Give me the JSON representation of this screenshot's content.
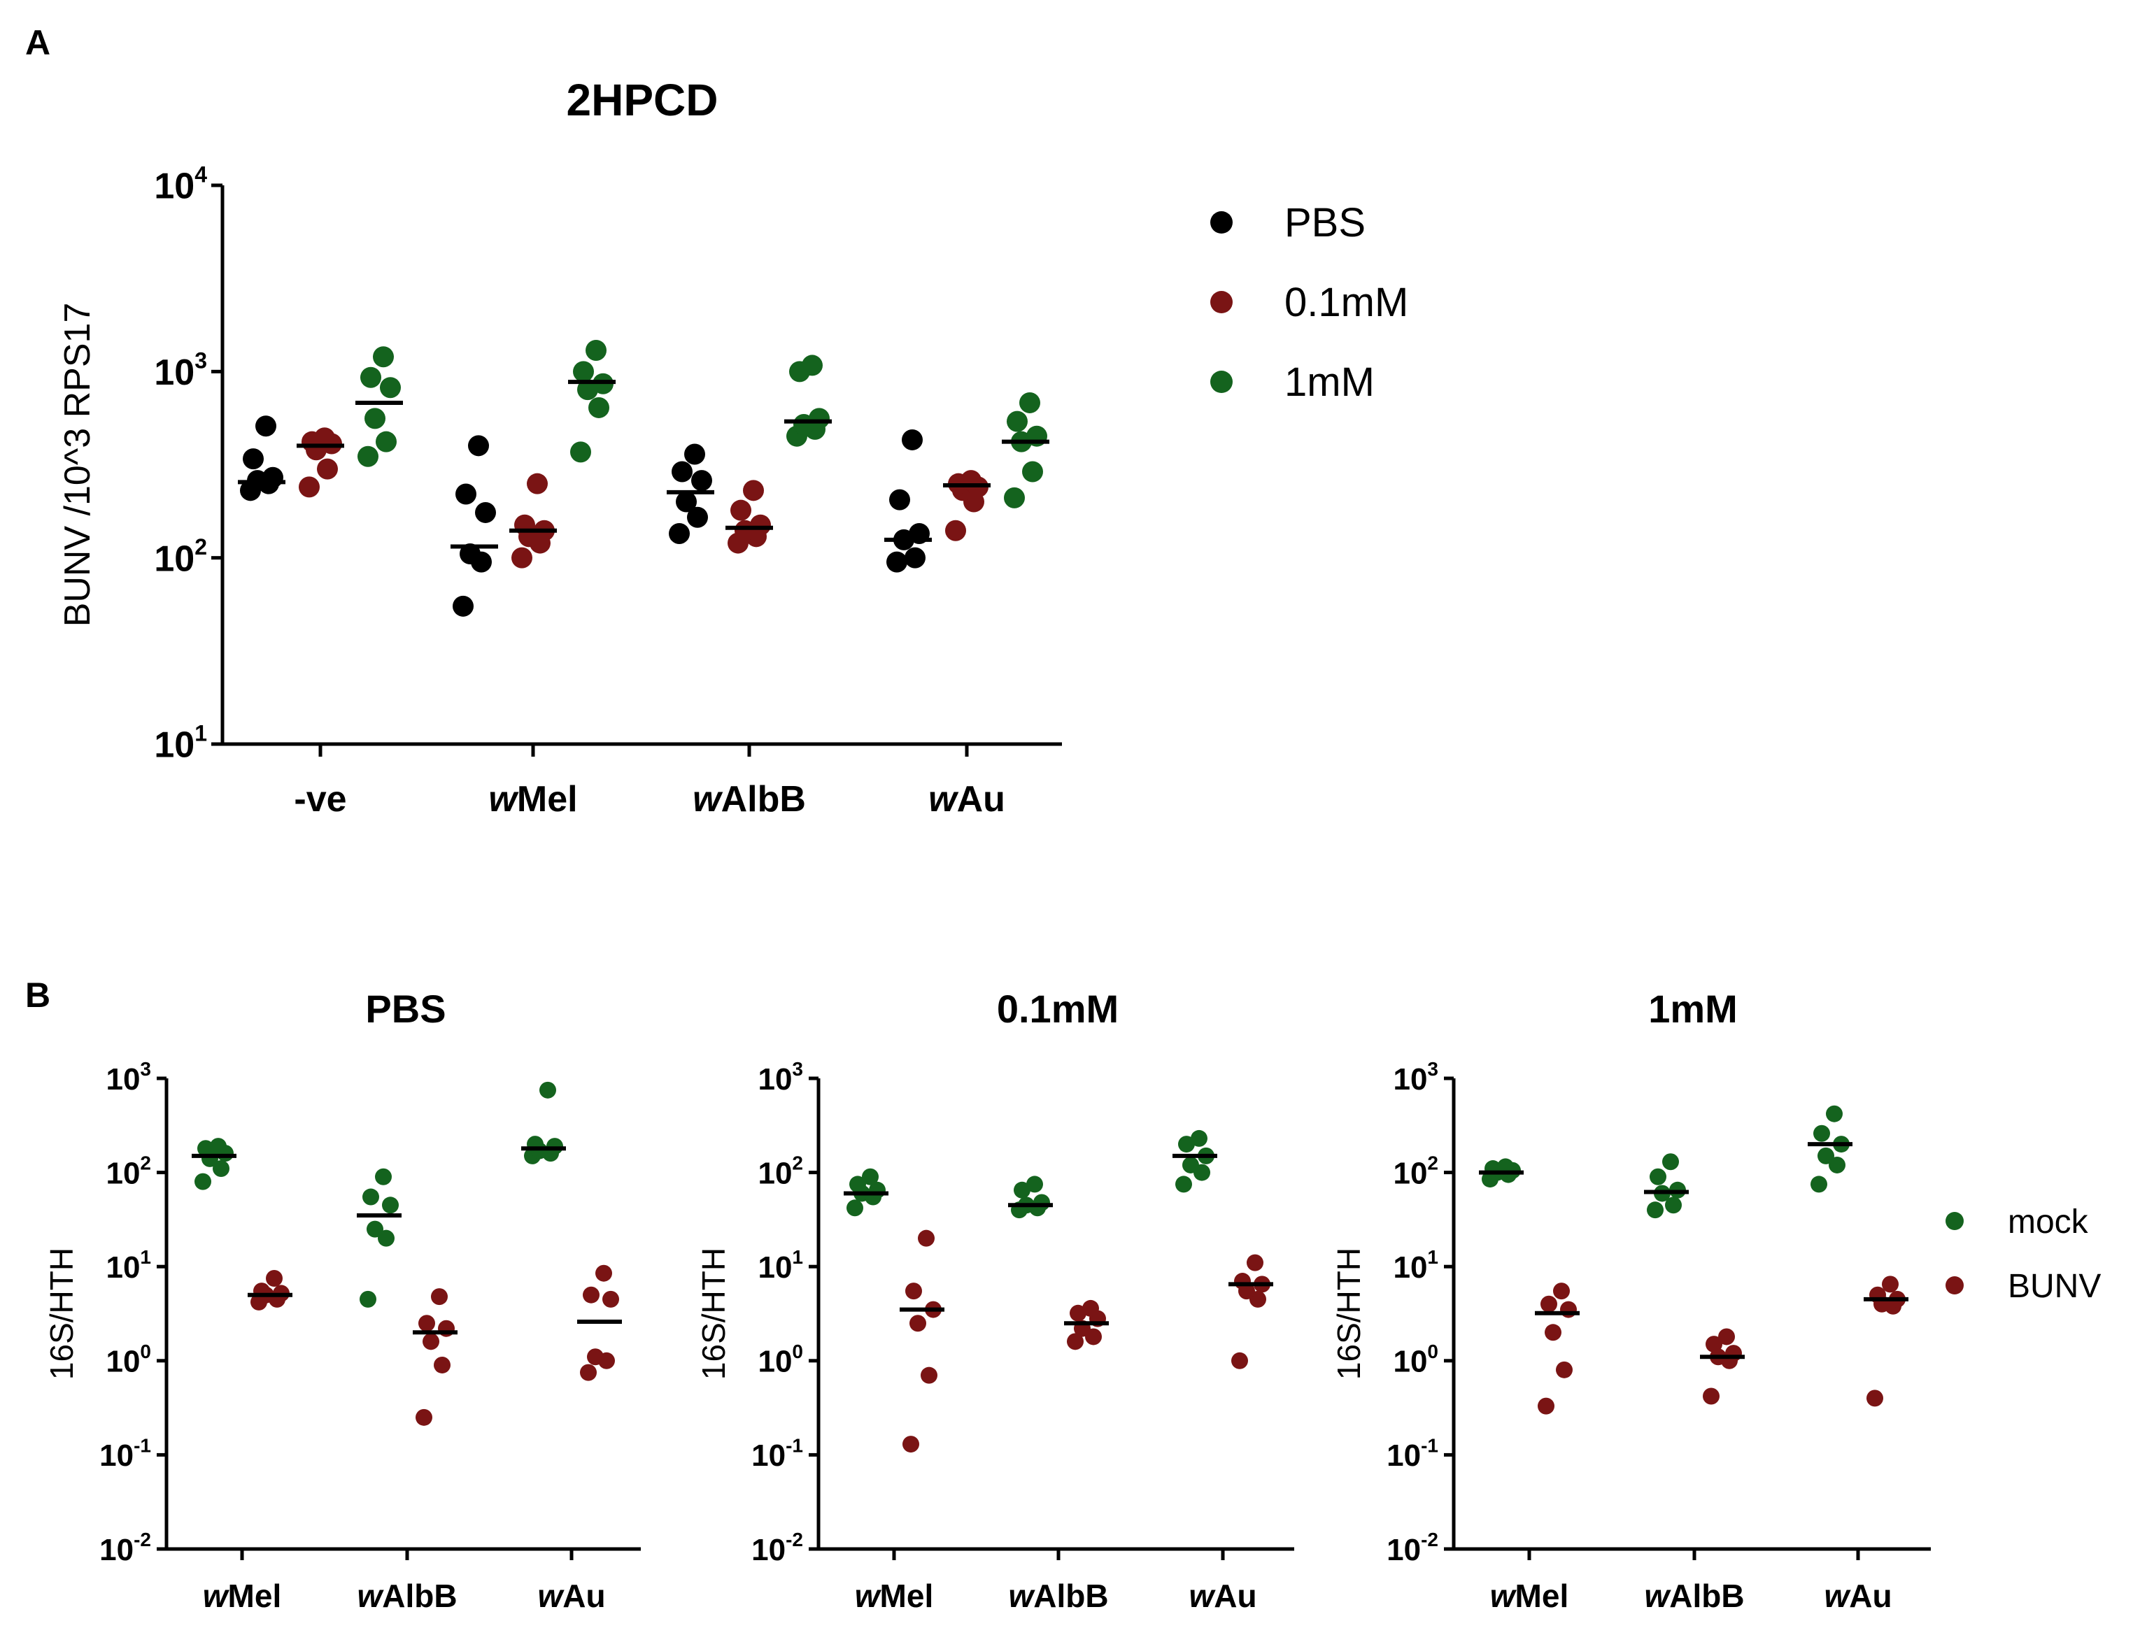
{
  "panel_labels": {
    "a": "A",
    "b": "B"
  },
  "chart_data": [
    {
      "type": "scatter",
      "panel": "A",
      "title": "2HPCD",
      "xlabel": "",
      "ylabel": "BUNV /10^3 RPS17",
      "yscale": "log",
      "ylim": [
        10,
        10000
      ],
      "yticks": [
        {
          "base": "10",
          "exp": "1",
          "value": 10
        },
        {
          "base": "10",
          "exp": "2",
          "value": 100
        },
        {
          "base": "10",
          "exp": "3",
          "value": 1000
        },
        {
          "base": "10",
          "exp": "4",
          "value": 10000
        }
      ],
      "categories": [
        {
          "italic": "",
          "rest": "-ve"
        },
        {
          "italic": "w",
          "rest": "Mel"
        },
        {
          "italic": "w",
          "rest": "AlbB"
        },
        {
          "italic": "w",
          "rest": "Au"
        }
      ],
      "legend_position": "right",
      "series": [
        {
          "name": "PBS",
          "color": "#000000",
          "points": [
            [
              230,
              250,
              260,
              270,
              340,
              510
            ],
            [
              55,
              95,
              105,
              175,
              220,
              400
            ],
            [
              135,
              165,
              200,
              260,
              290,
              360
            ],
            [
              95,
              100,
              125,
              135,
              205,
              430
            ]
          ],
          "medians": [
            255,
            115,
            225,
            125
          ]
        },
        {
          "name": "0.1mM",
          "color": "#7a1414",
          "points": [
            [
              240,
              300,
              380,
              410,
              420,
              440
            ],
            [
              100,
              120,
              130,
              140,
              150,
              250
            ],
            [
              120,
              130,
              140,
              150,
              180,
              230
            ],
            [
              140,
              200,
              230,
              240,
              250,
              260
            ]
          ],
          "medians": [
            400,
            140,
            145,
            245
          ]
        },
        {
          "name": "1mM",
          "color": "#14631e",
          "points": [
            [
              350,
              420,
              560,
              820,
              930,
              1200
            ],
            [
              370,
              640,
              800,
              860,
              1000,
              1300
            ],
            [
              450,
              490,
              520,
              560,
              1000,
              1080
            ],
            [
              210,
              290,
              420,
              450,
              540,
              680
            ]
          ],
          "medians": [
            680,
            880,
            540,
            420
          ]
        }
      ]
    },
    {
      "type": "scatter",
      "panel": "B",
      "title": "PBS",
      "xlabel": "",
      "ylabel": "16S/HTH",
      "yscale": "log",
      "ylim": [
        0.01,
        1000
      ],
      "yticks": [
        {
          "base": "10",
          "exp": "-2",
          "value": 0.01
        },
        {
          "base": "10",
          "exp": "-1",
          "value": 0.1
        },
        {
          "base": "10",
          "exp": "0",
          "value": 1
        },
        {
          "base": "10",
          "exp": "1",
          "value": 10
        },
        {
          "base": "10",
          "exp": "2",
          "value": 100
        },
        {
          "base": "10",
          "exp": "3",
          "value": 1000
        }
      ],
      "categories": [
        {
          "italic": "w",
          "rest": "Mel"
        },
        {
          "italic": "w",
          "rest": "AlbB"
        },
        {
          "italic": "w",
          "rest": "Au"
        }
      ],
      "series": [
        {
          "name": "mock",
          "color": "#14631e",
          "points": [
            [
              80,
              110,
              140,
              160,
              180,
              190
            ],
            [
              4.5,
              20,
              25,
              45,
              55,
              90
            ],
            [
              150,
              160,
              170,
              190,
              200,
              750
            ]
          ],
          "medians": [
            150,
            35,
            180
          ]
        },
        {
          "name": "BUNV",
          "color": "#7a1414",
          "points": [
            [
              4.2,
              4.5,
              5,
              5.2,
              5.5,
              7.5
            ],
            [
              0.25,
              0.9,
              1.6,
              2.2,
              2.5,
              4.8
            ],
            [
              0.75,
              1,
              1.1,
              4.5,
              5,
              8.5
            ]
          ],
          "medians": [
            5,
            2,
            2.6
          ]
        }
      ]
    },
    {
      "type": "scatter",
      "panel": "B",
      "title": "0.1mM",
      "xlabel": "",
      "ylabel": "16S/HTH",
      "yscale": "log",
      "ylim": [
        0.01,
        1000
      ],
      "yticks": [
        {
          "base": "10",
          "exp": "-2",
          "value": 0.01
        },
        {
          "base": "10",
          "exp": "-1",
          "value": 0.1
        },
        {
          "base": "10",
          "exp": "0",
          "value": 1
        },
        {
          "base": "10",
          "exp": "1",
          "value": 10
        },
        {
          "base": "10",
          "exp": "2",
          "value": 100
        },
        {
          "base": "10",
          "exp": "3",
          "value": 1000
        }
      ],
      "categories": [
        {
          "italic": "w",
          "rest": "Mel"
        },
        {
          "italic": "w",
          "rest": "AlbB"
        },
        {
          "italic": "w",
          "rest": "Au"
        }
      ],
      "series": [
        {
          "name": "mock",
          "color": "#14631e",
          "points": [
            [
              42,
              55,
              60,
              65,
              75,
              90
            ],
            [
              40,
              42,
              45,
              48,
              65,
              75
            ],
            [
              75,
              100,
              120,
              150,
              200,
              230
            ]
          ],
          "medians": [
            60,
            45,
            150
          ]
        },
        {
          "name": "BUNV",
          "color": "#7a1414",
          "points": [
            [
              0.13,
              0.7,
              2.5,
              3.5,
              5.5,
              20
            ],
            [
              1.6,
              1.8,
              2.2,
              2.8,
              3.2,
              3.6
            ],
            [
              1,
              4.5,
              5.5,
              6.5,
              7,
              11
            ]
          ],
          "medians": [
            3.5,
            2.5,
            6.5
          ]
        }
      ]
    },
    {
      "type": "scatter",
      "panel": "B",
      "title": "1mM",
      "xlabel": "",
      "ylabel": "16S/HTH",
      "yscale": "log",
      "ylim": [
        0.01,
        1000
      ],
      "yticks": [
        {
          "base": "10",
          "exp": "-2",
          "value": 0.01
        },
        {
          "base": "10",
          "exp": "-1",
          "value": 0.1
        },
        {
          "base": "10",
          "exp": "0",
          "value": 1
        },
        {
          "base": "10",
          "exp": "1",
          "value": 10
        },
        {
          "base": "10",
          "exp": "2",
          "value": 100
        },
        {
          "base": "10",
          "exp": "3",
          "value": 1000
        }
      ],
      "categories": [
        {
          "italic": "w",
          "rest": "Mel"
        },
        {
          "italic": "w",
          "rest": "AlbB"
        },
        {
          "italic": "w",
          "rest": "Au"
        }
      ],
      "legend_position": "right",
      "series": [
        {
          "name": "mock",
          "color": "#14631e",
          "points": [
            [
              85,
              95,
              100,
              105,
              110,
              115
            ],
            [
              40,
              45,
              60,
              65,
              90,
              130
            ],
            [
              75,
              120,
              150,
              200,
              260,
              420
            ]
          ],
          "medians": [
            100,
            62,
            200
          ]
        },
        {
          "name": "BUNV",
          "color": "#7a1414",
          "points": [
            [
              0.33,
              0.8,
              2,
              3.5,
              4,
              5.5
            ],
            [
              0.42,
              1,
              1.1,
              1.2,
              1.5,
              1.8
            ],
            [
              0.4,
              3.8,
              4,
              4.5,
              5,
              6.5
            ]
          ],
          "medians": [
            3.2,
            1.1,
            4.5
          ]
        }
      ]
    }
  ]
}
